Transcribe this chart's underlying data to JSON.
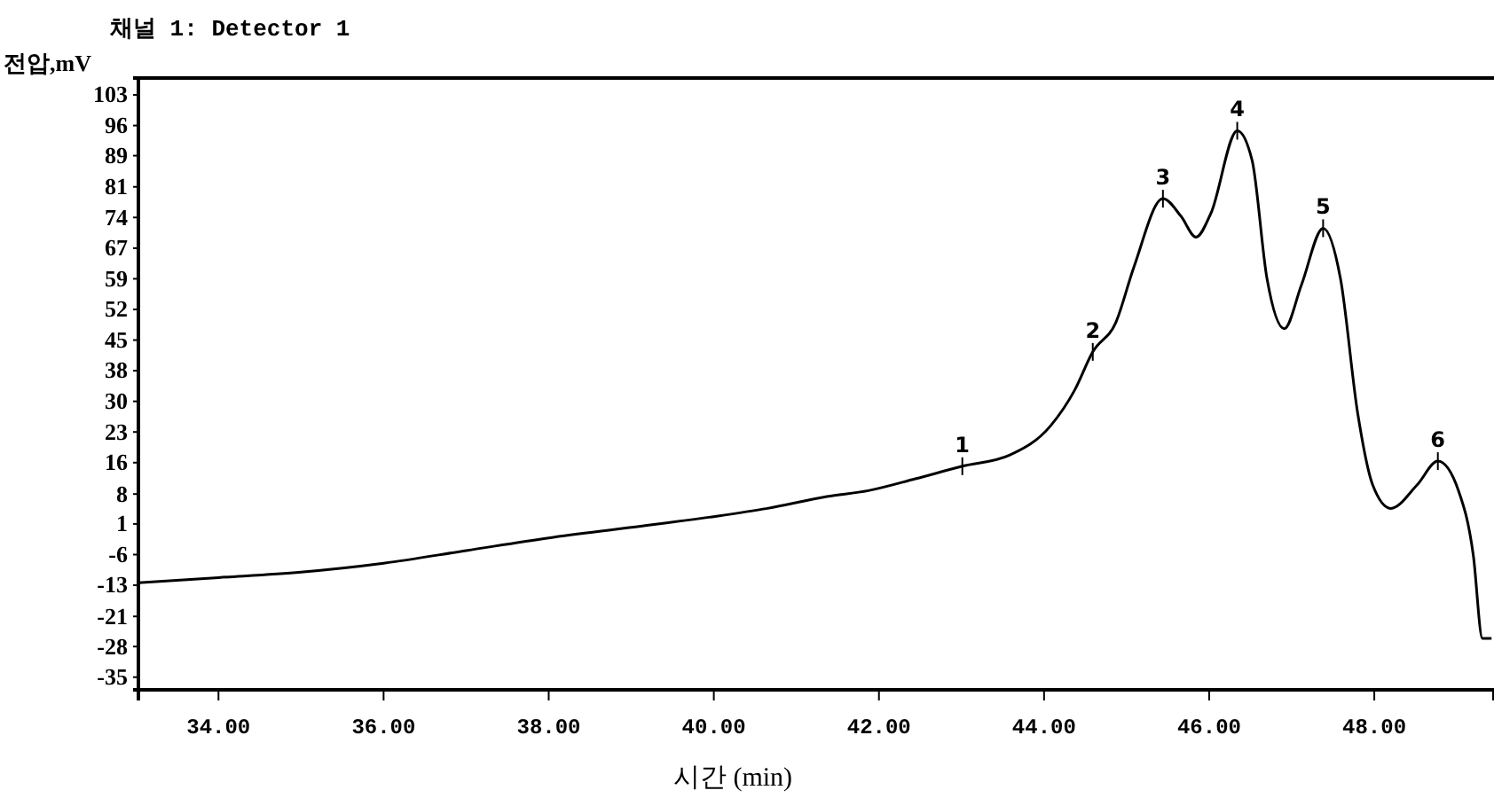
{
  "chart_data": {
    "type": "line",
    "title": "채널 1: Detector 1",
    "xlabel": "시간 (min)",
    "ylabel": "전압,mV",
    "x": [
      33.03,
      34.0,
      35.0,
      36.0,
      37.0,
      38.0,
      39.0,
      39.94,
      40.65,
      41.37,
      41.87,
      42.44,
      43.01,
      43.58,
      44.08,
      44.37,
      44.59,
      44.87,
      45.09,
      45.44,
      45.66,
      45.84,
      46.02,
      46.34,
      46.52,
      46.7,
      46.91,
      47.12,
      47.38,
      47.59,
      47.8,
      47.98,
      48.2,
      48.52,
      48.77,
      49.02,
      49.2,
      49.31,
      49.42
    ],
    "series": [
      {
        "color": "#000000",
        "values": [
          -12.6,
          -11.4,
          -10.1,
          -8.0,
          -5.0,
          -2.0,
          0.5,
          2.9,
          5.0,
          7.8,
          9.2,
          12.0,
          15.0,
          17.6,
          24.6,
          33.0,
          42.1,
          49.1,
          62.3,
          78.4,
          74.2,
          69.3,
          74.9,
          94.5,
          87.5,
          59.5,
          47.6,
          58.1,
          71.4,
          59.5,
          27.4,
          10.6,
          5.0,
          10.6,
          16.2,
          9.2,
          -6.2,
          -25.8,
          -25.8
        ]
      }
    ],
    "xlim": [
      33.03,
      49.45
    ],
    "ylim": [
      -38,
      107
    ],
    "xticks": [
      {
        "value": 34,
        "label": "34.00"
      },
      {
        "value": 36,
        "label": "36.00"
      },
      {
        "value": 38,
        "label": "38.00"
      },
      {
        "value": 40,
        "label": "40.00"
      },
      {
        "value": 42,
        "label": "42.00"
      },
      {
        "value": 44,
        "label": "44.00"
      },
      {
        "value": 46,
        "label": "46.00"
      },
      {
        "value": 48,
        "label": "48.00"
      }
    ],
    "yticks": [
      103,
      {
        "value": 95.74,
        "label": "96"
      },
      {
        "value": 88.6,
        "label": "89"
      },
      {
        "value": 81.21,
        "label": "81"
      },
      {
        "value": 73.95,
        "label": "74"
      },
      {
        "value": 66.68,
        "label": "67"
      },
      {
        "value": 59.42,
        "label": "59"
      },
      {
        "value": 52.16,
        "label": "52"
      },
      {
        "value": 44.89,
        "label": "45"
      },
      {
        "value": 37.63,
        "label": "38"
      },
      {
        "value": 30.37,
        "label": "30"
      },
      {
        "value": 23.11,
        "label": "23"
      },
      {
        "value": 15.84,
        "label": "16"
      },
      {
        "value": 8.4,
        "label": "8"
      },
      {
        "value": 1.32,
        "label": "1"
      },
      {
        "value": -5.95,
        "label": "-6"
      },
      {
        "value": -13.21,
        "label": "-13"
      },
      {
        "value": -20.6,
        "label": "-21"
      },
      {
        "value": -27.74,
        "label": "-28"
      },
      -35
    ],
    "annotations": [
      {
        "text": "1",
        "x": 43.01,
        "y": 15.0
      },
      {
        "text": "2",
        "x": 44.59,
        "y": 42.1
      },
      {
        "text": "3",
        "x": 45.44,
        "y": 78.4
      },
      {
        "text": "4",
        "x": 46.34,
        "y": 94.5
      },
      {
        "text": "5",
        "x": 47.38,
        "y": 71.4
      },
      {
        "text": "6",
        "x": 48.77,
        "y": 16.2
      }
    ],
    "grid": false,
    "marker": "none",
    "line_style": "solid"
  }
}
